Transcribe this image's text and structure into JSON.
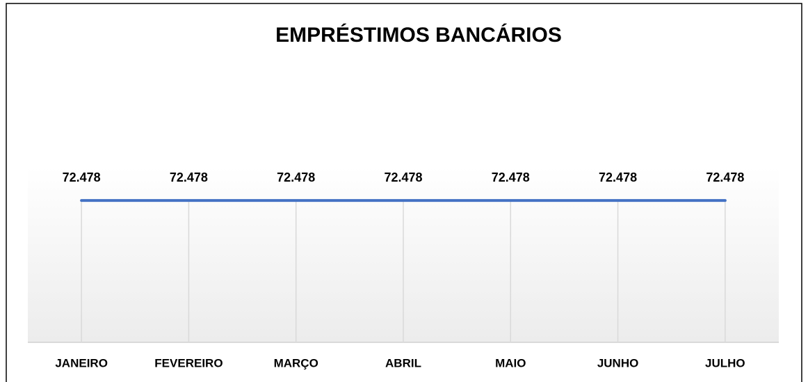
{
  "chart_data": {
    "type": "line",
    "title": "EMPRÉSTIMOS BANCÁRIOS",
    "categories": [
      "JANEIRO",
      "FEVEREIRO",
      "MARÇO",
      "ABRIL",
      "MAIO",
      "JUNHO",
      "JULHO"
    ],
    "series": [
      {
        "name": "EMPRÉSTIMOS BANCÁRIOS",
        "color": "#4472c4",
        "values": [
          72478,
          72478,
          72478,
          72478,
          72478,
          72478,
          72478
        ],
        "value_labels": [
          "72.478",
          "72.478",
          "72.478",
          "72.478",
          "72.478",
          "72.478",
          "72.478"
        ]
      }
    ],
    "ylim": [
      0,
      80000
    ]
  }
}
